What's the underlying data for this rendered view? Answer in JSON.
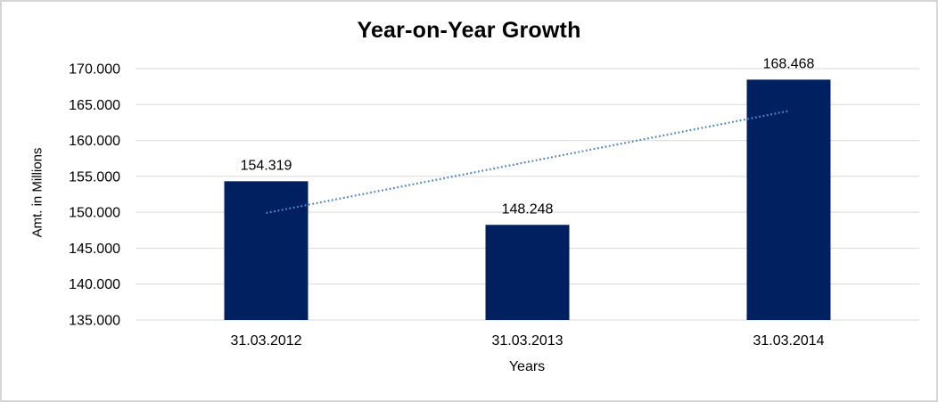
{
  "chart_data": {
    "type": "bar",
    "title": "Year-on-Year Growth",
    "xlabel": "Years",
    "ylabel": "Amt. in Millions",
    "categories": [
      "31.03.2012",
      "31.03.2013",
      "31.03.2014"
    ],
    "values": [
      154.319,
      148.248,
      168.468
    ],
    "data_labels": [
      "154.319",
      "148.248",
      "168.468"
    ],
    "ylim": [
      135,
      170
    ],
    "yticks": [
      {
        "value": 135,
        "label": "135.000"
      },
      {
        "value": 140,
        "label": "140.000"
      },
      {
        "value": 145,
        "label": "145.000"
      },
      {
        "value": 150,
        "label": "150.000"
      },
      {
        "value": 155,
        "label": "155.000"
      },
      {
        "value": 160,
        "label": "160.000"
      },
      {
        "value": 165,
        "label": "165.000"
      },
      {
        "value": 170,
        "label": "170.000"
      }
    ],
    "grid": "horizontal",
    "legend": "none",
    "trendline": {
      "type": "linear",
      "style": "dotted",
      "start_value": 149.9,
      "end_value": 164.1
    },
    "colors": {
      "bar": "#002060",
      "trendline": "#4f86c6",
      "gridline": "#d9d9d9",
      "text": "#000000",
      "background": "#ffffff",
      "frame_border": "#d6d6d6"
    }
  }
}
